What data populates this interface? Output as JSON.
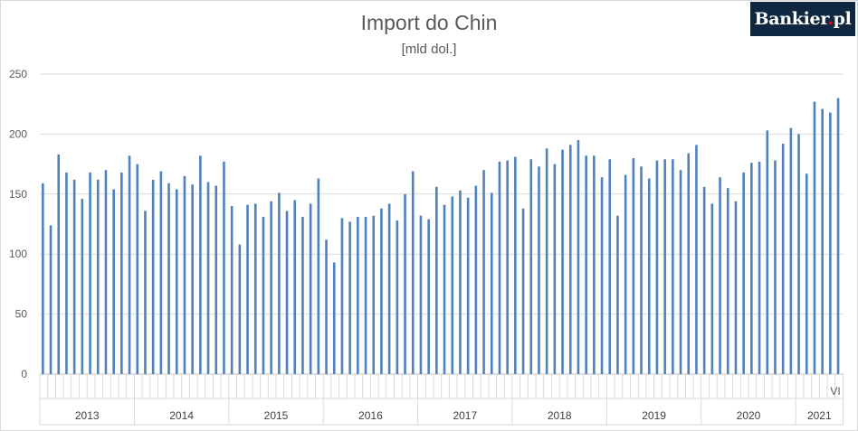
{
  "header": {
    "title": "Import do Chin",
    "subtitle": "[mld dol.]"
  },
  "logo": {
    "text_main": "Bankier",
    "text_dot": ".",
    "text_end": "pl"
  },
  "colors": {
    "bar": "#4f81bd",
    "grid": "#d9d9d9",
    "logo_bg": "#0f2740",
    "logo_dot": "#e30613"
  },
  "chart_data": {
    "type": "bar",
    "title": "Import do Chin",
    "subtitle": "[mld dol.]",
    "xlabel": "",
    "ylabel": "",
    "ylim": [
      0,
      250
    ],
    "y_ticks": [
      0,
      50,
      100,
      150,
      200,
      250
    ],
    "grid": true,
    "legend": "none",
    "year_labels": [
      "2013",
      "2014",
      "2015",
      "2016",
      "2017",
      "2018",
      "2019",
      "2020",
      "2021"
    ],
    "month_label_last": "VI",
    "values": [
      159,
      124,
      183,
      168,
      162,
      146,
      168,
      162,
      170,
      154,
      168,
      182,
      175,
      136,
      162,
      169,
      159,
      154,
      165,
      158,
      182,
      160,
      157,
      177,
      140,
      108,
      141,
      142,
      131,
      144,
      151,
      136,
      145,
      131,
      142,
      163,
      112,
      93,
      130,
      127,
      131,
      131,
      132,
      138,
      142,
      128,
      150,
      169,
      132,
      129,
      156,
      141,
      148,
      153,
      147,
      157,
      170,
      151,
      177,
      178,
      181,
      138,
      179,
      173,
      188,
      175,
      187,
      191,
      195,
      182,
      182,
      164,
      179,
      132,
      166,
      180,
      173,
      163,
      178,
      179,
      179,
      170,
      184,
      191,
      156,
      142,
      164,
      155,
      144,
      168,
      176,
      177,
      203,
      178,
      192,
      205,
      200,
      167,
      227,
      221,
      218,
      230
    ]
  }
}
